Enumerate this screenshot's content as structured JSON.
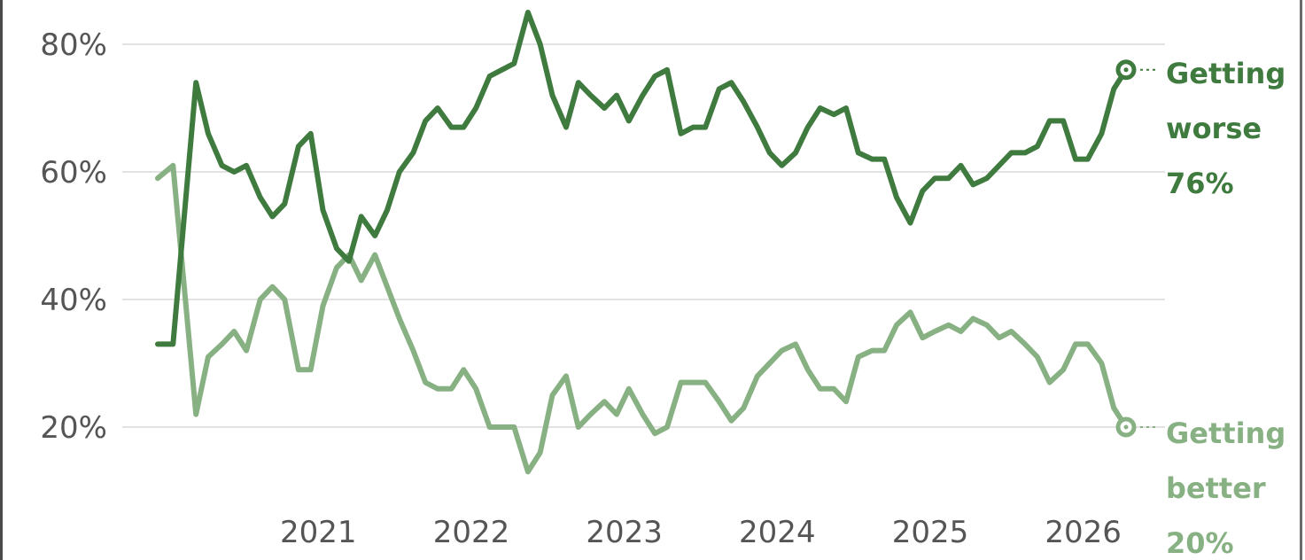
{
  "chart_data": {
    "type": "line",
    "title": "",
    "xlabel": "",
    "ylabel": "",
    "ylim": [
      10,
      86
    ],
    "yticks": [
      "20%",
      "40%",
      "60%",
      "80%"
    ],
    "ytick_values": [
      20,
      40,
      60,
      80
    ],
    "xticks": [
      "2021",
      "2022",
      "2023",
      "2024",
      "2025",
      "2026"
    ],
    "xtick_values": [
      2021,
      2022,
      2023,
      2024,
      2025,
      2026
    ],
    "grid": "horizontal",
    "colors": {
      "worse": "#3f7a3f",
      "better": "#88b183",
      "grid": "#e3e3e3"
    },
    "series": [
      {
        "name": "Getting worse",
        "label_lines": [
          "Getting",
          "worse",
          "76%"
        ],
        "end_value": 76,
        "x": [
          2020.0,
          2020.1,
          2020.25,
          2020.33,
          2020.42,
          2020.5,
          2020.58,
          2020.67,
          2020.75,
          2020.83,
          2020.92,
          2021.0,
          2021.08,
          2021.17,
          2021.25,
          2021.33,
          2021.42,
          2021.5,
          2021.58,
          2021.67,
          2021.75,
          2021.83,
          2021.92,
          2022.0,
          2022.08,
          2022.17,
          2022.25,
          2022.33,
          2022.42,
          2022.5,
          2022.58,
          2022.67,
          2022.75,
          2022.83,
          2022.92,
          2023.0,
          2023.08,
          2023.17,
          2023.25,
          2023.33,
          2023.42,
          2023.5,
          2023.58,
          2023.67,
          2023.75,
          2023.83,
          2023.92,
          2024.0,
          2024.08,
          2024.17,
          2024.25,
          2024.33,
          2024.42,
          2024.5,
          2024.58,
          2024.67,
          2024.75,
          2024.83,
          2024.92,
          2025.0,
          2025.08,
          2025.17,
          2025.25,
          2025.33,
          2025.42,
          2025.5,
          2025.58,
          2025.67,
          2025.75,
          2025.83,
          2025.92,
          2026.0,
          2026.08,
          2026.17,
          2026.25,
          2026.33
        ],
        "values": [
          33,
          33,
          74,
          66,
          61,
          60,
          61,
          56,
          53,
          55,
          64,
          66,
          54,
          48,
          46,
          53,
          50,
          54,
          60,
          63,
          68,
          70,
          67,
          67,
          70,
          75,
          76,
          77,
          85,
          80,
          72,
          67,
          74,
          72,
          70,
          72,
          68,
          72,
          75,
          76,
          66,
          67,
          67,
          73,
          74,
          71,
          67,
          63,
          61,
          63,
          67,
          70,
          69,
          70,
          63,
          62,
          62,
          56,
          52,
          57,
          59,
          59,
          61,
          58,
          59,
          61,
          63,
          63,
          64,
          68,
          68,
          62,
          62,
          66,
          73,
          76
        ]
      },
      {
        "name": "Getting better",
        "label_lines": [
          "Getting",
          "better",
          "20%"
        ],
        "end_value": 20,
        "x": [
          2020.0,
          2020.1,
          2020.25,
          2020.33,
          2020.42,
          2020.5,
          2020.58,
          2020.67,
          2020.75,
          2020.83,
          2020.92,
          2021.0,
          2021.08,
          2021.17,
          2021.25,
          2021.33,
          2021.42,
          2021.5,
          2021.58,
          2021.67,
          2021.75,
          2021.83,
          2021.92,
          2022.0,
          2022.08,
          2022.17,
          2022.25,
          2022.33,
          2022.42,
          2022.5,
          2022.58,
          2022.67,
          2022.75,
          2022.83,
          2022.92,
          2023.0,
          2023.08,
          2023.17,
          2023.25,
          2023.33,
          2023.42,
          2023.5,
          2023.58,
          2023.67,
          2023.75,
          2023.83,
          2023.92,
          2024.0,
          2024.08,
          2024.17,
          2024.25,
          2024.33,
          2024.42,
          2024.5,
          2024.58,
          2024.67,
          2024.75,
          2024.83,
          2024.92,
          2025.0,
          2025.08,
          2025.17,
          2025.25,
          2025.33,
          2025.42,
          2025.5,
          2025.58,
          2025.67,
          2025.75,
          2025.83,
          2025.92,
          2026.0,
          2026.08,
          2026.17,
          2026.25,
          2026.33
        ],
        "values": [
          59,
          61,
          22,
          31,
          33,
          35,
          32,
          40,
          42,
          40,
          29,
          29,
          39,
          45,
          47,
          43,
          47,
          42,
          37,
          32,
          27,
          26,
          26,
          29,
          26,
          20,
          20,
          20,
          13,
          16,
          25,
          28,
          20,
          22,
          24,
          22,
          26,
          22,
          19,
          20,
          27,
          27,
          27,
          24,
          21,
          23,
          28,
          30,
          32,
          33,
          29,
          26,
          26,
          24,
          31,
          32,
          32,
          36,
          38,
          34,
          35,
          36,
          35,
          37,
          36,
          34,
          35,
          33,
          31,
          27,
          29,
          33,
          33,
          30,
          23,
          20
        ]
      }
    ]
  }
}
